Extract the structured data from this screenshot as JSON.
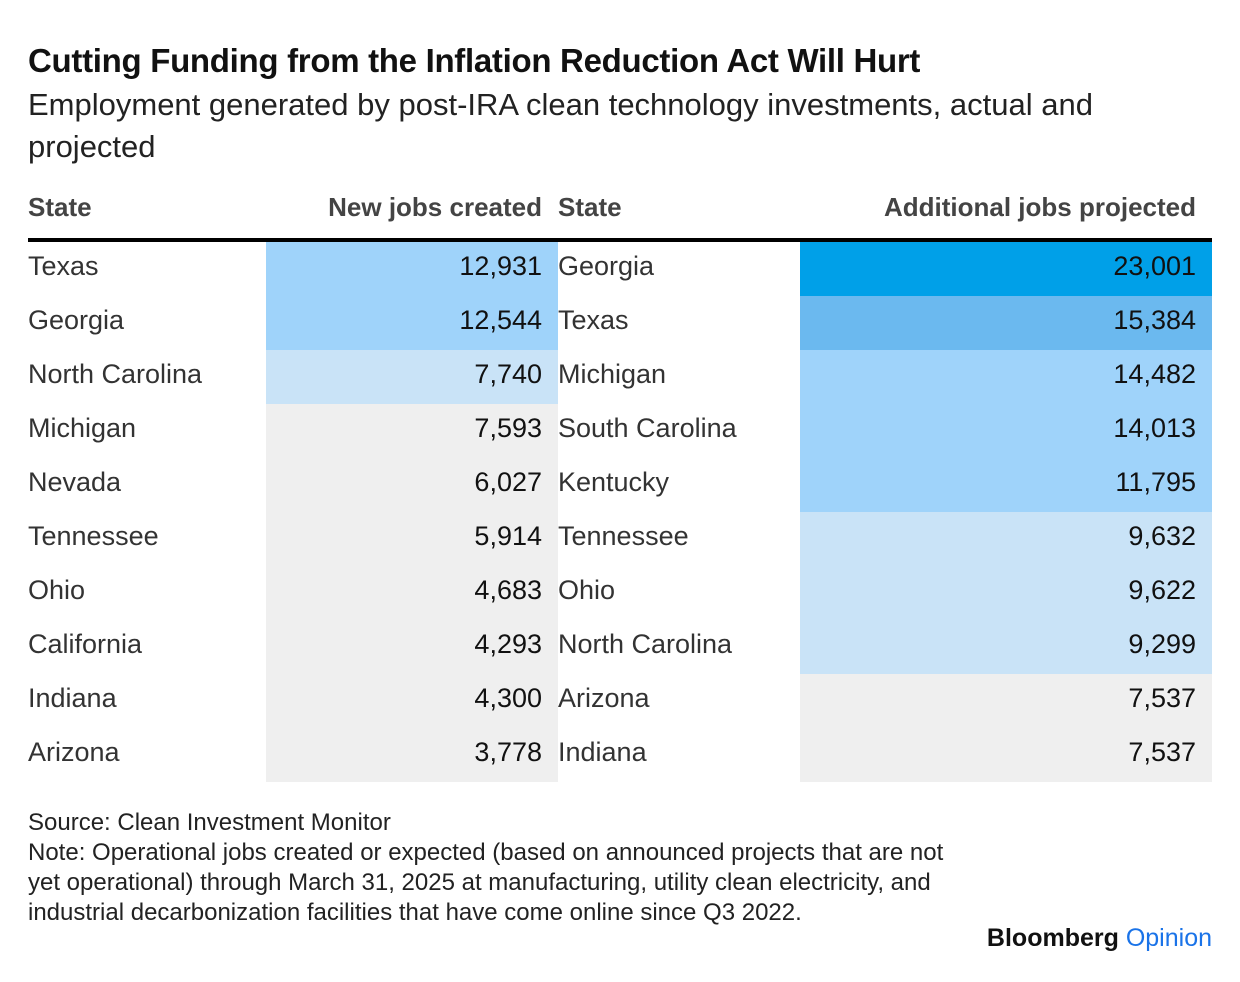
{
  "title": "Cutting Funding from the Inflation Reduction Act Will Hurt",
  "subtitle": "Employment generated by post-IRA clean technology investments, actual and projected",
  "headers": {
    "state_left": "State",
    "new_jobs": "New jobs created",
    "state_right": "State",
    "additional_jobs": "Additional jobs projected"
  },
  "colors": {
    "scale_darkest": "#00a0e8",
    "scale_dark": "#6bb9ef",
    "scale_mid": "#9fd3fa",
    "scale_light": "#c9e3f7",
    "scale_lightest": "#efefef"
  },
  "chart_data": {
    "type": "table",
    "title": "Cutting Funding from the Inflation Reduction Act Will Hurt",
    "subtitle": "Employment generated by post-IRA clean technology investments, actual and projected",
    "columns": [
      "State",
      "New jobs created",
      "State",
      "Additional jobs projected"
    ],
    "rows": [
      {
        "state_left": "Texas",
        "new_jobs": "12,931",
        "state_right": "Georgia",
        "additional_jobs": "23,001"
      },
      {
        "state_left": "Georgia",
        "new_jobs": "12,544",
        "state_right": "Texas",
        "additional_jobs": "15,384"
      },
      {
        "state_left": "North Carolina",
        "new_jobs": "7,740",
        "state_right": "Michigan",
        "additional_jobs": "14,482"
      },
      {
        "state_left": "Michigan",
        "new_jobs": "7,593",
        "state_right": "South Carolina",
        "additional_jobs": "14,013"
      },
      {
        "state_left": "Nevada",
        "new_jobs": "6,027",
        "state_right": "Kentucky",
        "additional_jobs": "11,795"
      },
      {
        "state_left": "Tennessee",
        "new_jobs": "5,914",
        "state_right": "Tennessee",
        "additional_jobs": "9,632"
      },
      {
        "state_left": "Ohio",
        "new_jobs": "4,683",
        "state_right": "Ohio",
        "additional_jobs": "9,622"
      },
      {
        "state_left": "California",
        "new_jobs": "4,293",
        "state_right": "North Carolina",
        "additional_jobs": "9,299"
      },
      {
        "state_left": "Indiana",
        "new_jobs": "4,300",
        "state_right": "Arizona",
        "additional_jobs": "7,537"
      },
      {
        "state_left": "Arizona",
        "new_jobs": "3,778",
        "state_right": "Indiana",
        "additional_jobs": "7,537"
      }
    ]
  },
  "footer": {
    "source": "Source: Clean Investment Monitor",
    "note": "Note: Operational jobs created or expected (based on announced projects that are not yet operational) through March 31, 2025 at manufacturing, utility clean electricity, and industrial decarbonization facilities that have come online since Q3 2022."
  },
  "brand": {
    "name": "Bloomberg",
    "section": "Opinion"
  }
}
